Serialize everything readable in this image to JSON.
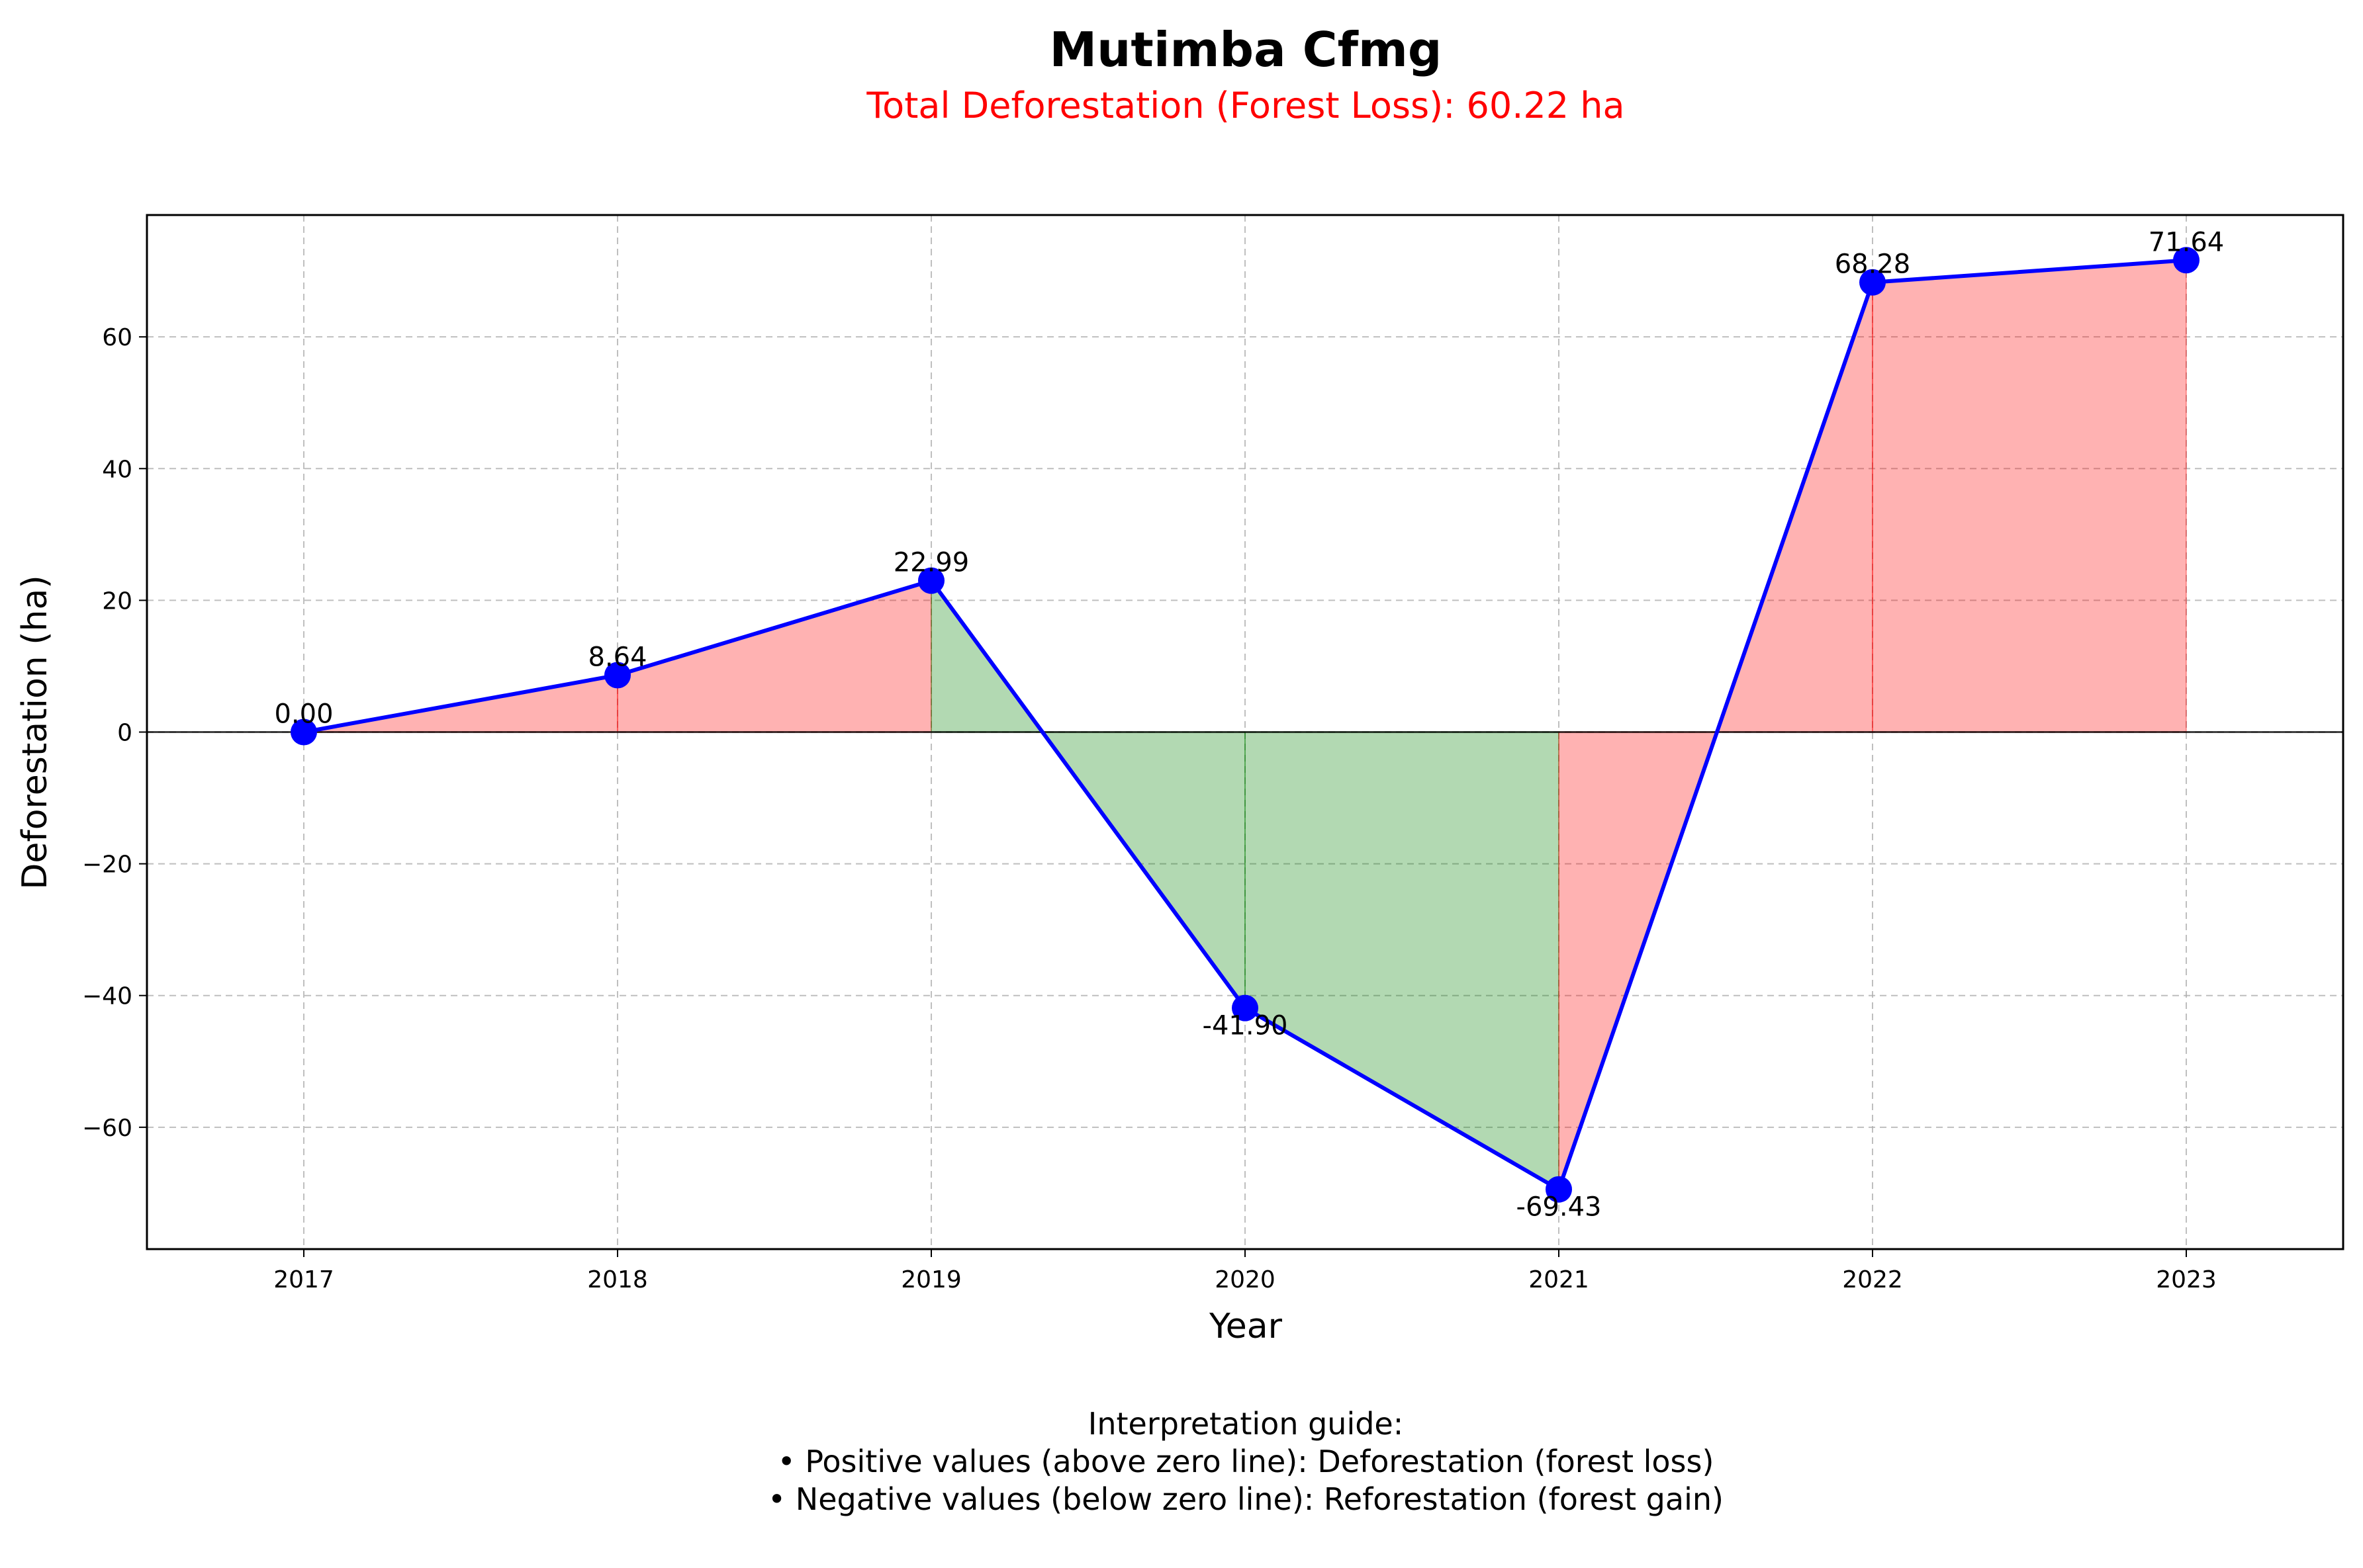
{
  "chart_data": {
    "type": "line",
    "title": "Mutimba Cfmg",
    "subtitle": "Total Deforestation (Forest Loss): 60.22 ha",
    "xlabel": "Year",
    "ylabel": "Deforestation (ha)",
    "x": [
      "2017",
      "2018",
      "2019",
      "2020",
      "2021",
      "2022",
      "2023"
    ],
    "values": [
      0.0,
      8.64,
      22.99,
      -41.9,
      -69.43,
      68.28,
      71.64
    ],
    "data_labels": [
      "0.00",
      "8.64",
      "22.99",
      "-41.90",
      "-69.43",
      "68.28",
      "71.64"
    ],
    "ylim": [
      -78.5,
      78.5
    ],
    "yticks": [
      -60,
      -40,
      -20,
      0,
      20,
      40,
      60
    ],
    "ytick_labels": [
      "−60",
      "−40",
      "−20",
      "0",
      "20",
      "40",
      "60"
    ],
    "grid": true,
    "colors": {
      "line": "#0000ff",
      "marker": "#0000ff",
      "increase_fill": "#ff0000",
      "decrease_fill": "#008000",
      "subtitle": "#ff0000",
      "zero_line": "#000000"
    },
    "legend": null
  },
  "guide": {
    "heading": "Interpretation guide:",
    "line1": "• Positive values (above zero line): Deforestation (forest loss)",
    "line2": "• Negative values (below zero line): Reforestation (forest gain)"
  }
}
